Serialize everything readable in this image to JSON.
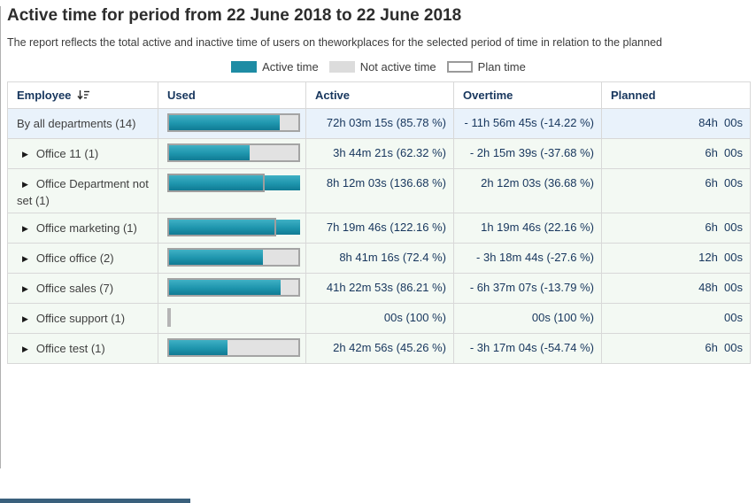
{
  "header": {
    "title": "Active time for period from 22 June 2018 to 22 June 2018",
    "subtitle": "The report reflects the total active and inactive time of users on theworkplaces for the selected period of time in relation to the planned"
  },
  "legend": {
    "items": [
      {
        "id": "active",
        "label": "Active time"
      },
      {
        "id": "inactive",
        "label": "Not active time"
      },
      {
        "id": "plan",
        "label": "Plan time"
      }
    ]
  },
  "table": {
    "columns": [
      {
        "label": "Employee",
        "sortable": true
      },
      {
        "label": "Used"
      },
      {
        "label": "Active"
      },
      {
        "label": "Overtime"
      },
      {
        "label": "Planned"
      }
    ],
    "rows": [
      {
        "employee": "By all departments (14)",
        "expandable": false,
        "highlight": true,
        "used_pct": 85.78,
        "active": "72h 03m 15s (85.78 %)",
        "overtime": "- 11h 56m 45s (-14.22 %)",
        "planned": "84h  00s"
      },
      {
        "employee": "Office 11 (1)",
        "expandable": true,
        "used_pct": 62.32,
        "active": "3h 44m 21s (62.32 %)",
        "overtime": "- 2h 15m 39s (-37.68 %)",
        "planned": "6h  00s"
      },
      {
        "employee": "Office Department not set (1)",
        "expandable": true,
        "used_pct": 136.68,
        "active": "8h 12m 03s (136.68 %)",
        "overtime": "2h 12m 03s (36.68 %)",
        "planned": "6h  00s"
      },
      {
        "employee": "Office marketing (1)",
        "expandable": true,
        "used_pct": 122.16,
        "active": "7h 19m 46s (122.16 %)",
        "overtime": "1h 19m 46s (22.16 %)",
        "planned": "6h  00s"
      },
      {
        "employee": "Office office (2)",
        "expandable": true,
        "used_pct": 72.4,
        "active": "8h 41m 16s (72.4 %)",
        "overtime": "- 3h 18m 44s (-27.6 %)",
        "planned": "12h  00s"
      },
      {
        "employee": "Office sales (7)",
        "expandable": true,
        "used_pct": 86.21,
        "active": "41h 22m 53s (86.21 %)",
        "overtime": "- 6h 37m 07s (-13.79 %)",
        "planned": "48h  00s"
      },
      {
        "employee": "Office support (1)",
        "expandable": true,
        "used_pct": 0,
        "active": "00s (100 %)",
        "overtime": "00s (100 %)",
        "planned": "00s"
      },
      {
        "employee": "Office test (1)",
        "expandable": true,
        "used_pct": 45.26,
        "active": "2h 42m 56s (45.26 %)",
        "overtime": "- 3h 17m 04s (-54.74 %)",
        "planned": "6h  00s"
      }
    ]
  },
  "colors": {
    "active_bar": "#1e8ca4",
    "inactive_bar": "#dcdcdc",
    "plan_border": "#9e9e9e",
    "header_text": "#17365d",
    "value_text": "#17365d",
    "row_highlight_bg": "#e9f2fb",
    "row_bg": "#f3f9f3",
    "scrollbar_thumb": "#3a607c"
  }
}
